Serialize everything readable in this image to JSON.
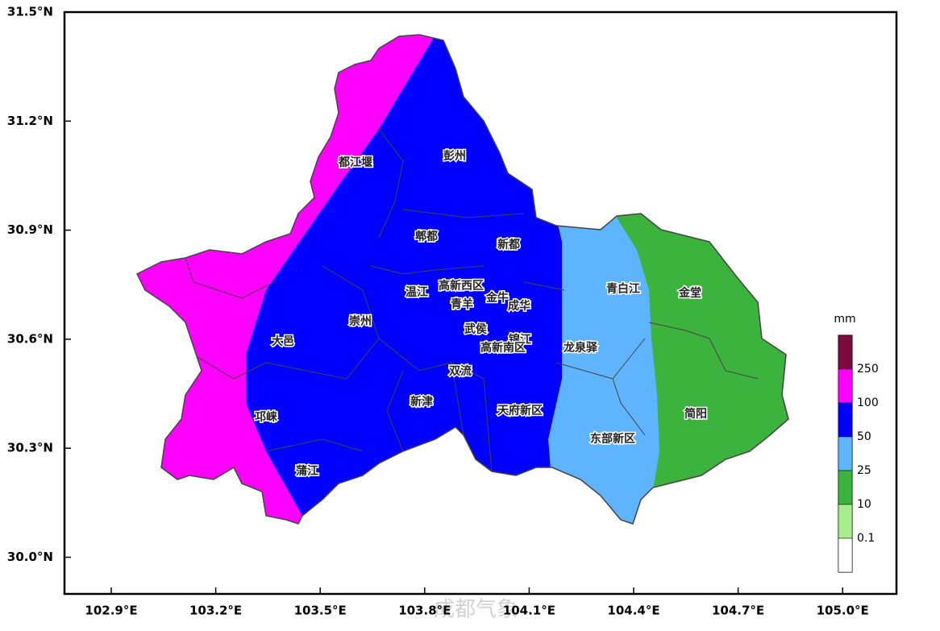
{
  "map": {
    "lat_labels": [
      "31.5°N",
      "31.2°N",
      "30.9°N",
      "30.6°N",
      "30.3°N",
      "30.0°N"
    ],
    "lon_labels": [
      "102.9°E",
      "103.2°E",
      "103.5°E",
      "103.8°E",
      "104.1°E",
      "104.4°E",
      "104.7°E",
      "105.0°E"
    ],
    "districts": [
      "都江堰",
      "彭州",
      "郫都",
      "新都",
      "温江",
      "高新西区",
      "金牛",
      "青羊",
      "成华",
      "崇州",
      "大邑",
      "武侯",
      "锦江",
      "高新南区",
      "龙泉驿",
      "青白江",
      "金堂",
      "双流",
      "新津",
      "天府新区",
      "邛崃",
      "蒲江",
      "东部新区",
      "简阳"
    ],
    "legend": {
      "unit": "mm",
      "labels": [
        "250",
        "100",
        "50",
        "25",
        "10",
        "0.1"
      ]
    },
    "watermark": "成都气象"
  }
}
